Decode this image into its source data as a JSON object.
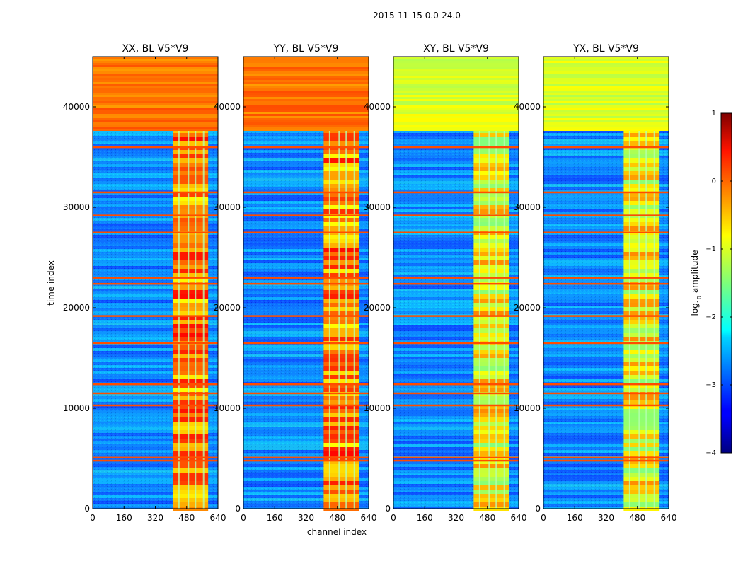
{
  "figure": {
    "suptitle": "2015-11-15 0.0-24.0"
  },
  "chart_data": {
    "type": "heatmap",
    "panels": [
      {
        "title": "XX, BL V5*V9"
      },
      {
        "title": "YY, BL V5*V9"
      },
      {
        "title": "XY, BL V5*V9"
      },
      {
        "title": "YX, BL V5*V9"
      }
    ],
    "xlabel": "channel index",
    "ylabel": "time index",
    "xlim": [
      0,
      640
    ],
    "ylim": [
      0,
      45000
    ],
    "xticks": [
      0,
      160,
      320,
      480,
      640
    ],
    "xtick_labels": [
      "0",
      "160",
      "320",
      "480",
      "640"
    ],
    "yticks": [
      0,
      10000,
      20000,
      30000,
      40000
    ],
    "ytick_labels": [
      "0",
      "10000",
      "20000",
      "30000",
      "40000"
    ],
    "colorbar": {
      "label_main": "log",
      "label_sub": "10",
      "label_rest": " amplitude",
      "vmin": -4,
      "vmax": 1,
      "ticks": [
        1,
        0,
        -1,
        -2,
        -3,
        -4
      ],
      "tick_labels": [
        "1",
        "0",
        "−1",
        "−2",
        "−3",
        "−4"
      ],
      "colormap": "jet"
    },
    "features": {
      "high_band_channels": [
        410,
        590
      ],
      "high_time_block": [
        37800,
        45000
      ],
      "bright_rows": [
        4800,
        5100,
        10300,
        11500,
        12400,
        16500,
        19200,
        22400,
        23000,
        27500,
        29200,
        31500,
        36000
      ]
    }
  }
}
